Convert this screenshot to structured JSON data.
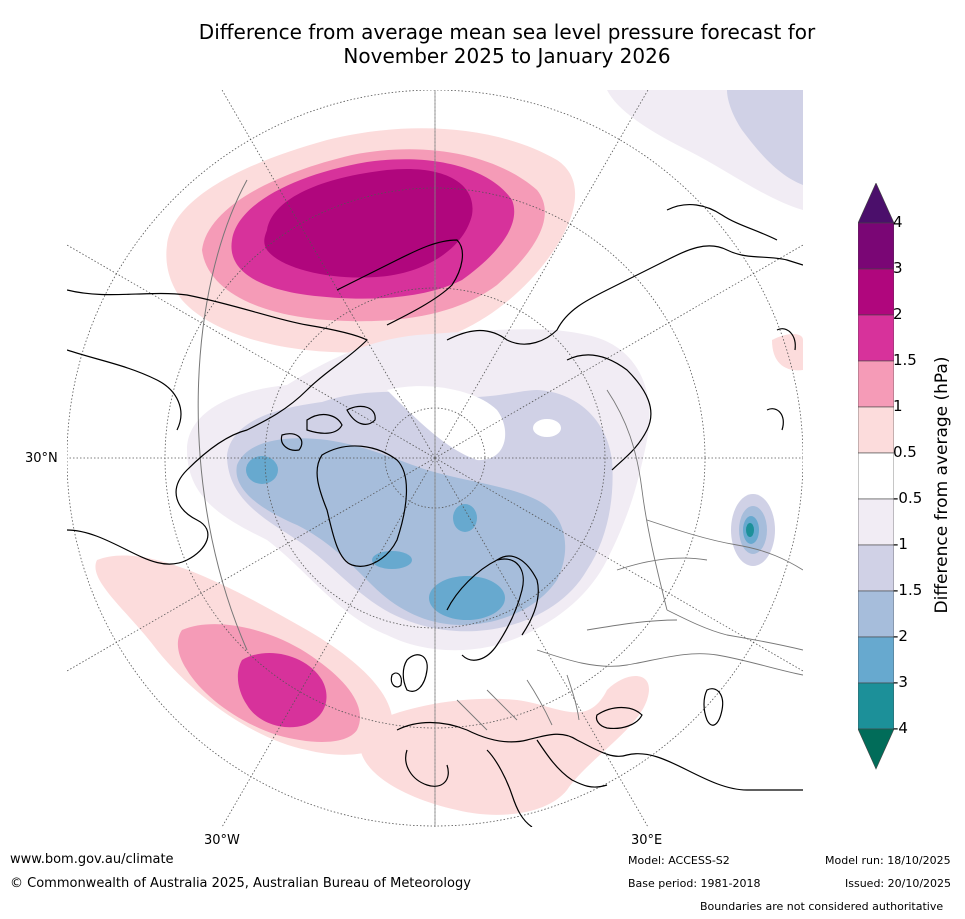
{
  "title_line1": "Difference from average mean sea level pressure forecast for",
  "title_line2": "November 2025 to January 2026",
  "axis_labels": {
    "lat_30n": "30°N",
    "lon_30w": "30°W",
    "lon_30e": "30°E"
  },
  "colorbar": {
    "title": "Difference from average (hPa)",
    "levels": [
      "4",
      "3",
      "2",
      "1.5",
      "1",
      "0.5",
      "-0.5",
      "-1",
      "-1.5",
      "-2",
      "-3",
      "-4"
    ],
    "colors": [
      "#4b0f6b",
      "#7a0675",
      "#b0067d",
      "#d7329b",
      "#f59bb7",
      "#fcdcdc",
      "#ffffff",
      "#f1ecf4",
      "#d0d1e6",
      "#a6bddb",
      "#67a9cf",
      "#1c9099",
      "#016c59"
    ]
  },
  "map": {
    "projection": "north-polar-stereographic",
    "features": [
      "positive-anomaly-north-pacific",
      "positive-anomaly-north-atlantic",
      "negative-anomaly-arctic",
      "positive-anomaly-mediterranean"
    ]
  },
  "footer": {
    "website": "www.bom.gov.au/climate",
    "copyright": "© Commonwealth of Australia 2025, Australian Bureau of Meteorology",
    "model": "Model: ACCESS-S2",
    "base_period": "Base period: 1981-2018",
    "model_run": "Model run: 18/10/2025",
    "issued": "Issued: 20/10/2025",
    "disclaimer": "Boundaries are not considered authoritative"
  }
}
